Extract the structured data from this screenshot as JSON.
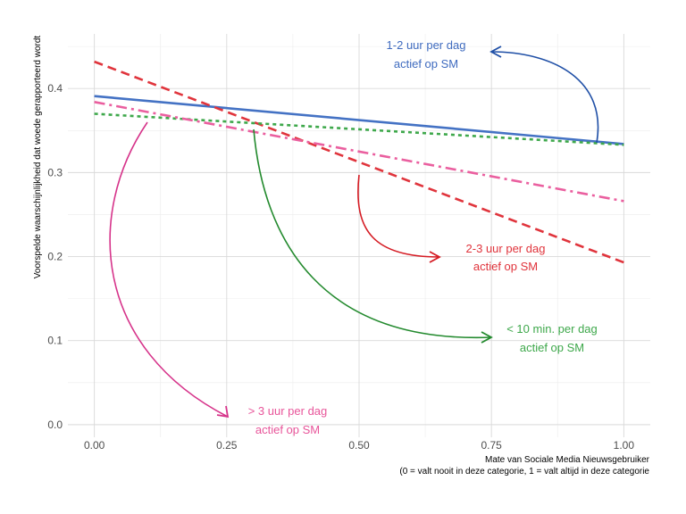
{
  "chart_data": {
    "type": "line",
    "title": "",
    "xlabel": [
      "Mate van Sociale Media Nieuwsgebruiker",
      "(0 = valt nooit in deze categorie, 1 = valt altijd in deze categorie"
    ],
    "ylabel": "Voorspelde waarschijnlijkheid dat woede gerapporteerd wordt",
    "xlim": [
      -0.05,
      1.05
    ],
    "ylim": [
      -0.015,
      0.465
    ],
    "x_ticks": [
      0,
      0.25,
      0.5,
      0.75,
      1
    ],
    "x_tick_labels": [
      "0.00",
      "0.25",
      "0.50",
      "0.75",
      "1.00"
    ],
    "y_ticks": [
      0,
      0.1,
      0.2,
      0.3,
      0.4
    ],
    "y_tick_labels": [
      "0.0",
      "0.1",
      "0.2",
      "0.3",
      "0.4"
    ],
    "grid": true,
    "legend": "none",
    "series": [
      {
        "name": "1-2 uur per dag actief op SM",
        "x": [
          0,
          1
        ],
        "y": [
          0.391,
          0.334
        ],
        "color": "#4472c4",
        "dash": "solid",
        "label_lines": [
          "1-2 uur per dag",
          "actief op SM"
        ],
        "label_color": "#3f6bbf",
        "arrow_color": "#1f4fa6"
      },
      {
        "name": "2-3 uur per dag actief op SM",
        "x": [
          0,
          1
        ],
        "y": [
          0.432,
          0.193
        ],
        "color": "#e0343c",
        "dash": "dashed",
        "label_lines": [
          "2-3 uur per dag",
          "actief op SM"
        ],
        "label_color": "#e0343c",
        "arrow_color": "#d51b23"
      },
      {
        "name": "< 10 min. per dag actief op SM",
        "x": [
          0,
          1
        ],
        "y": [
          0.37,
          0.333
        ],
        "color": "#3ea84b",
        "dash": "dotted",
        "label_lines": [
          "< 10 min. per dag",
          "actief op SM"
        ],
        "label_color": "#3ea84b",
        "arrow_color": "#238a2e"
      },
      {
        "name": "> 3 uur per dag actief op SM",
        "x": [
          0,
          1
        ],
        "y": [
          0.384,
          0.266
        ],
        "color": "#ea5f9f",
        "dash": "dotdash",
        "label_lines": [
          "> 3 uur per dag",
          "actief op SM"
        ],
        "label_color": "#e8559a",
        "arrow_color": "#d6338a"
      }
    ]
  }
}
